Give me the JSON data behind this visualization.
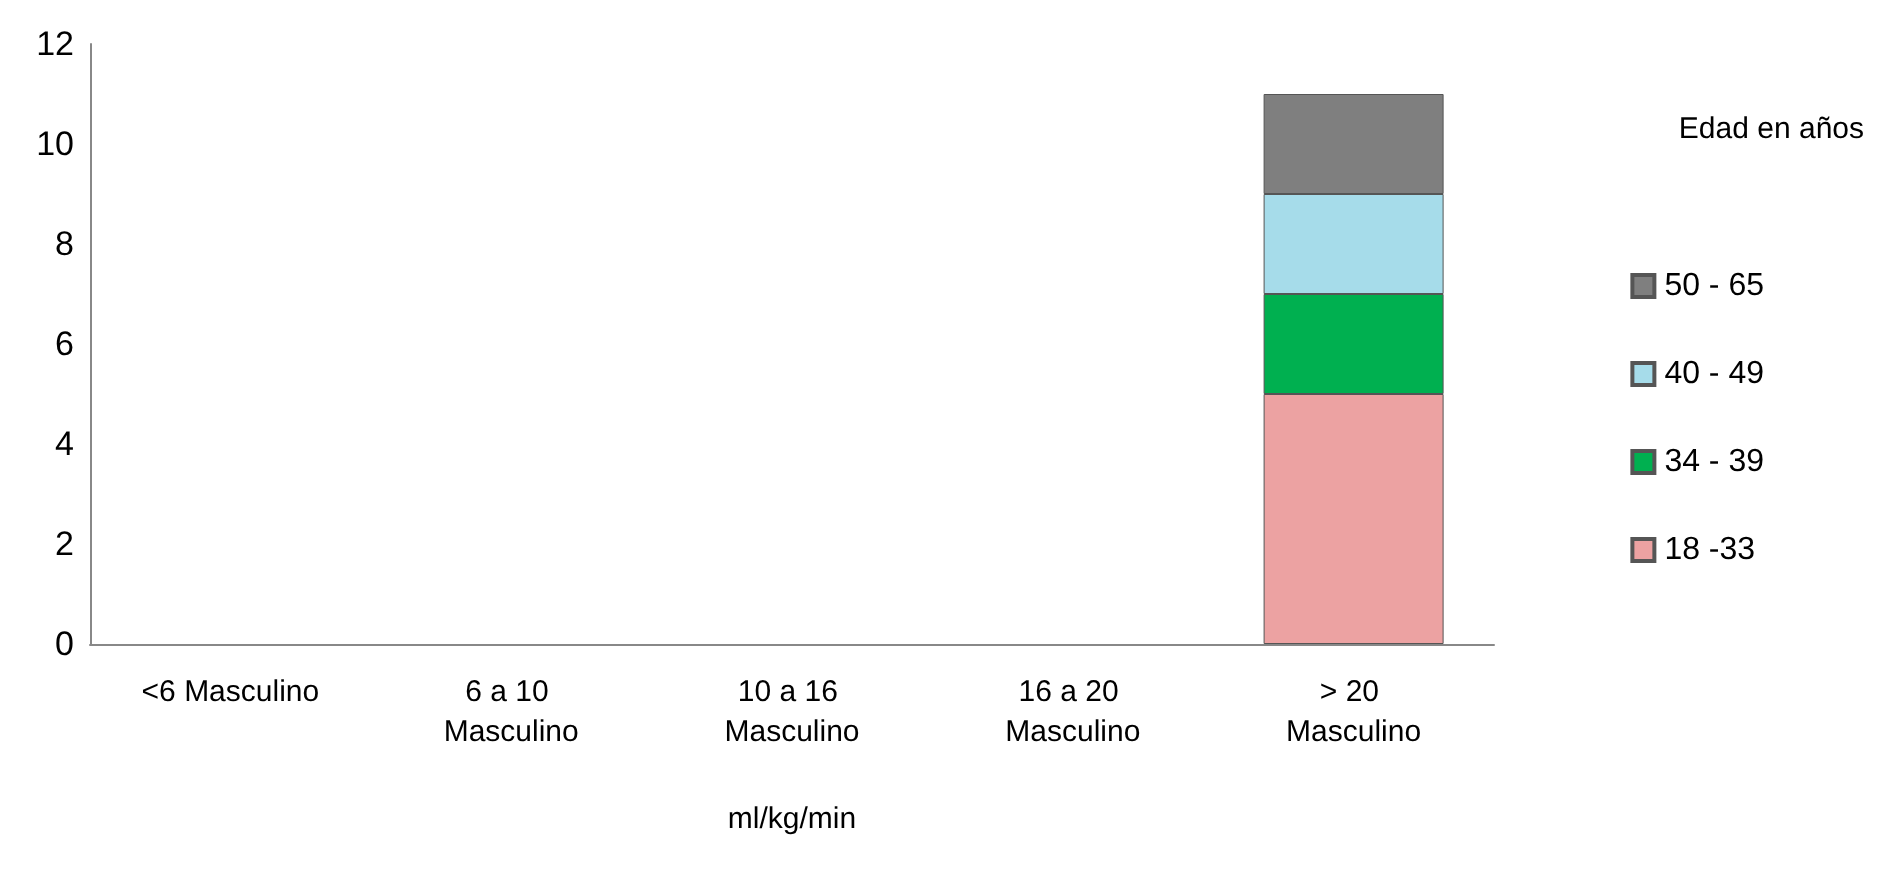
{
  "chart_data": {
    "type": "bar",
    "stacked": true,
    "xlabel": "ml/kg/min",
    "legend_title": "Edad en años",
    "categories": [
      "<6 Masculino",
      "6 a 10 Masculino",
      "10 a 16 Masculino",
      "16 a 20 Masculino",
      "> 20 Masculino"
    ],
    "series": [
      {
        "name": "18 -33",
        "color": "#eca2a2",
        "values": [
          null,
          null,
          null,
          null,
          5
        ]
      },
      {
        "name": "34 - 39",
        "color": "#00b050",
        "values": [
          null,
          null,
          null,
          null,
          2
        ]
      },
      {
        "name": "40 - 49",
        "color": "#a6dcea",
        "values": [
          null,
          null,
          null,
          null,
          2
        ]
      },
      {
        "name": "50 - 65",
        "color": "#7f7f7f",
        "values": [
          null,
          null,
          null,
          null,
          2
        ]
      }
    ],
    "ylim": [
      0,
      12
    ],
    "yticks": [
      0,
      2,
      4,
      6,
      8,
      10,
      12
    ],
    "grid": false,
    "legend": "right"
  }
}
